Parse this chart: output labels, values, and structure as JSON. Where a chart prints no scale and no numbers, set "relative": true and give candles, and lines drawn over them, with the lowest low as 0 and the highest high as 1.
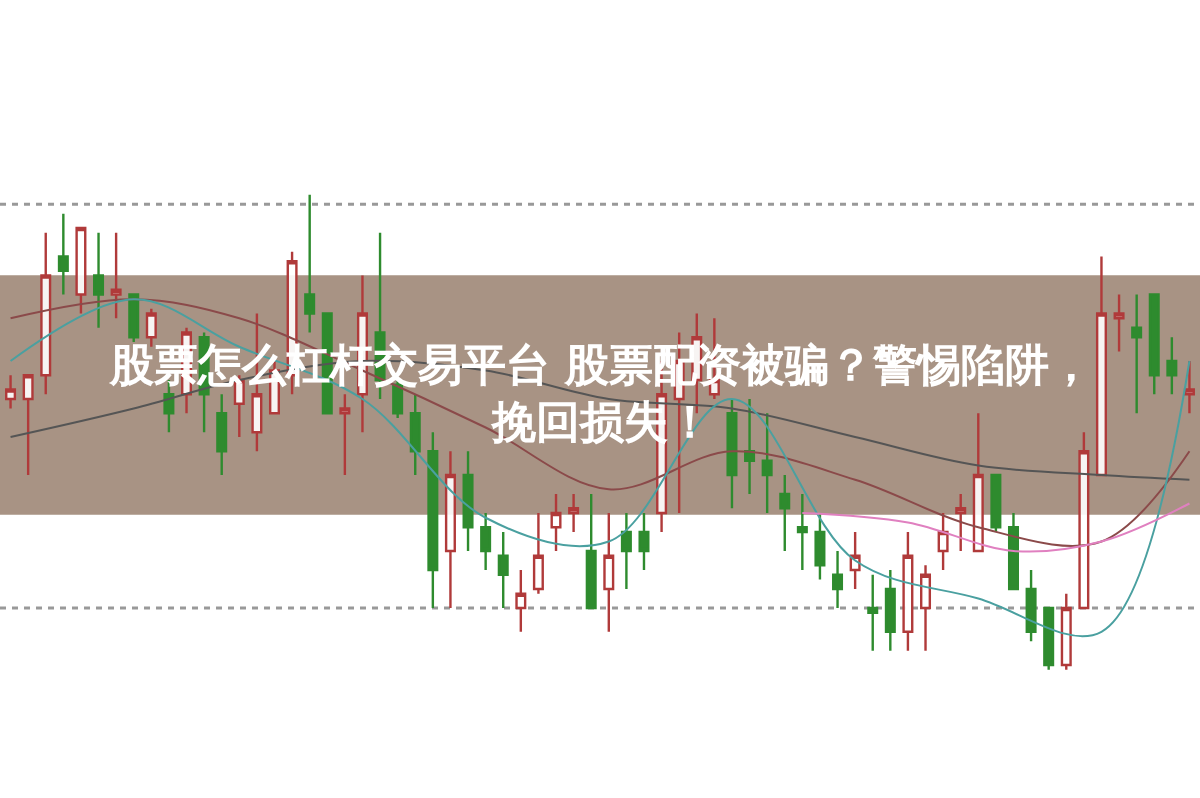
{
  "chart_data": {
    "type": "candlestick",
    "relative": true,
    "title": "股票怎么杠杆交易平台 股票配资被骗？警惕陷阱，挽回损失！",
    "categories": [
      null,
      null,
      null,
      null,
      null,
      null,
      null,
      null,
      null,
      null,
      null,
      null,
      null,
      null,
      null,
      null,
      null,
      null,
      null,
      null,
      null,
      null,
      null,
      null,
      null,
      null,
      null,
      null,
      null,
      null,
      null,
      null,
      null,
      null,
      null,
      null,
      null,
      null,
      null,
      null,
      null,
      null,
      null,
      null,
      null,
      null,
      null,
      null,
      null,
      null,
      null,
      null,
      null,
      null,
      null,
      null,
      null,
      null,
      null,
      null,
      null,
      null,
      null,
      null,
      null,
      null,
      null,
      null
    ],
    "ohlc": [
      [
        0.57,
        0.62,
        0.55,
        0.59
      ],
      [
        0.57,
        0.62,
        0.41,
        0.62
      ],
      [
        0.62,
        0.92,
        0.58,
        0.83
      ],
      [
        0.87,
        0.96,
        0.79,
        0.84
      ],
      [
        0.79,
        0.93,
        0.75,
        0.93
      ],
      [
        0.83,
        0.92,
        0.72,
        0.79
      ],
      [
        0.79,
        0.92,
        0.74,
        0.8
      ],
      [
        0.79,
        0.79,
        0.69,
        0.7
      ],
      [
        0.7,
        0.76,
        0.68,
        0.75
      ],
      [
        0.58,
        0.61,
        0.5,
        0.54
      ],
      [
        0.58,
        0.72,
        0.54,
        0.71
      ],
      [
        0.7,
        0.71,
        0.5,
        0.58
      ],
      [
        0.54,
        0.58,
        0.41,
        0.46
      ],
      [
        0.56,
        0.62,
        0.49,
        0.61
      ],
      [
        0.5,
        0.75,
        0.46,
        0.58
      ],
      [
        0.54,
        0.65,
        0.54,
        0.63
      ],
      [
        0.62,
        0.88,
        0.58,
        0.86
      ],
      [
        0.79,
        1.0,
        0.71,
        0.75
      ],
      [
        0.75,
        0.75,
        0.54,
        0.54
      ],
      [
        0.54,
        0.58,
        0.41,
        0.55
      ],
      [
        0.58,
        0.83,
        0.5,
        0.75
      ],
      [
        0.71,
        0.92,
        0.57,
        0.61
      ],
      [
        0.6,
        0.61,
        0.53,
        0.54
      ],
      [
        0.54,
        0.58,
        0.41,
        0.46
      ],
      [
        0.46,
        0.5,
        0.13,
        0.21
      ],
      [
        0.25,
        0.46,
        0.13,
        0.41
      ],
      [
        0.41,
        0.46,
        0.25,
        0.3
      ],
      [
        0.3,
        0.33,
        0.21,
        0.25
      ],
      [
        0.24,
        0.29,
        0.13,
        0.2
      ],
      [
        0.13,
        0.21,
        0.08,
        0.16
      ],
      [
        0.17,
        0.33,
        0.16,
        0.24
      ],
      [
        0.3,
        0.37,
        0.25,
        0.33
      ],
      [
        0.33,
        0.37,
        0.29,
        0.34
      ],
      [
        0.25,
        0.37,
        0.13,
        0.13
      ],
      [
        0.17,
        0.33,
        0.08,
        0.24
      ],
      [
        0.29,
        0.33,
        0.17,
        0.25
      ],
      [
        0.29,
        0.33,
        0.21,
        0.25
      ],
      [
        0.33,
        0.65,
        0.29,
        0.58
      ],
      [
        0.57,
        0.71,
        0.33,
        0.65
      ],
      [
        0.61,
        0.75,
        0.54,
        0.7
      ],
      [
        0.58,
        0.74,
        0.57,
        0.61
      ],
      [
        0.54,
        0.57,
        0.34,
        0.41
      ],
      [
        0.46,
        0.57,
        0.37,
        0.44
      ],
      [
        0.44,
        0.54,
        0.33,
        0.41
      ],
      [
        0.37,
        0.41,
        0.25,
        0.34
      ],
      [
        0.3,
        0.37,
        0.21,
        0.29
      ],
      [
        0.29,
        0.33,
        0.19,
        0.22
      ],
      [
        0.2,
        0.25,
        0.13,
        0.17
      ],
      [
        0.21,
        0.29,
        0.17,
        0.24
      ],
      [
        0.13,
        0.2,
        0.04,
        0.12
      ],
      [
        0.17,
        0.21,
        0.04,
        0.08
      ],
      [
        0.08,
        0.29,
        0.04,
        0.24
      ],
      [
        0.13,
        0.22,
        0.04,
        0.2
      ],
      [
        0.25,
        0.33,
        0.21,
        0.29
      ],
      [
        0.33,
        0.37,
        0.25,
        0.34
      ],
      [
        0.25,
        0.54,
        0.25,
        0.41
      ],
      [
        0.41,
        0.41,
        0.29,
        0.3
      ],
      [
        0.3,
        0.33,
        0.17,
        0.17
      ],
      [
        0.17,
        0.21,
        0.06,
        0.08
      ],
      [
        0.13,
        0.13,
        0,
        0.01
      ],
      [
        0.01,
        0.16,
        0,
        0.13
      ],
      [
        0.13,
        0.5,
        0.13,
        0.46
      ],
      [
        0.41,
        0.87,
        0.41,
        0.75
      ],
      [
        0.74,
        0.79,
        0.67,
        0.75
      ],
      [
        0.72,
        0.79,
        0.54,
        0.7
      ],
      [
        0.79,
        0.79,
        0.58,
        0.62
      ],
      [
        0.65,
        0.7,
        0.58,
        0.62
      ],
      [
        0.58,
        0.65,
        0.54,
        0.59
      ]
    ],
    "series": [
      {
        "type": "line",
        "color": "#555555",
        "values": [
          0.49,
          null,
          null,
          null,
          null,
          null,
          null,
          0.55,
          null,
          null,
          null,
          null,
          null,
          0.61,
          null,
          null,
          null,
          null,
          null,
          null,
          0.65,
          null,
          null,
          null,
          null,
          null,
          null,
          0.63,
          null,
          null,
          null,
          null,
          null,
          null,
          0.57,
          null,
          null,
          null,
          null,
          null,
          null,
          0.55,
          null,
          null,
          null,
          null,
          null,
          null,
          0.49,
          null,
          null,
          null,
          null,
          null,
          null,
          0.43,
          null,
          null,
          null,
          null,
          null,
          null,
          0.41,
          null,
          null,
          null,
          null,
          0.4
        ]
      },
      {
        "type": "line",
        "color": "#8b4a4a",
        "values": [
          0.74,
          null,
          null,
          null,
          null,
          null,
          null,
          0.78,
          null,
          null,
          null,
          null,
          null,
          0.74,
          null,
          null,
          null,
          null,
          null,
          null,
          0.63,
          null,
          null,
          null,
          null,
          null,
          null,
          0.51,
          null,
          null,
          null,
          null,
          null,
          null,
          0.38,
          null,
          null,
          null,
          null,
          null,
          null,
          0.46,
          null,
          null,
          null,
          null,
          null,
          null,
          0.4,
          null,
          null,
          null,
          null,
          null,
          null,
          0.3,
          null,
          null,
          null,
          null,
          null,
          null,
          0.27,
          null,
          null,
          null,
          null,
          0.46
        ]
      },
      {
        "type": "line",
        "color": "#4aa0a0",
        "values": [
          0.65,
          null,
          null,
          null,
          null,
          null,
          null,
          0.78,
          null,
          null,
          null,
          null,
          null,
          0.68,
          null,
          null,
          null,
          null,
          null,
          null,
          0.57,
          null,
          null,
          null,
          null,
          null,
          null,
          0.32,
          null,
          null,
          null,
          null,
          null,
          null,
          0.27,
          null,
          null,
          null,
          null,
          null,
          null,
          0.57,
          null,
          null,
          null,
          null,
          null,
          null,
          0.23,
          null,
          null,
          null,
          null,
          null,
          null,
          0.15,
          null,
          null,
          null,
          null,
          null,
          null,
          0.08,
          null,
          null,
          null,
          null,
          0.65
        ]
      },
      {
        "type": "line",
        "color": "#e080c0",
        "values": [
          null,
          null,
          null,
          null,
          null,
          null,
          null,
          null,
          null,
          null,
          null,
          null,
          null,
          null,
          null,
          null,
          null,
          null,
          null,
          null,
          null,
          null,
          null,
          null,
          null,
          null,
          null,
          null,
          null,
          null,
          null,
          null,
          null,
          null,
          null,
          null,
          null,
          null,
          null,
          null,
          null,
          null,
          null,
          null,
          null,
          0.33,
          null,
          null,
          null,
          null,
          null,
          0.31,
          null,
          null,
          null,
          null,
          null,
          0.25,
          null,
          null,
          null,
          null,
          0.27,
          null,
          null,
          null,
          null,
          0.35
        ]
      }
    ],
    "ref_lines": [
      {
        "axis": "y",
        "value": 0.98,
        "color": "#999999",
        "line_style": "dotted"
      },
      {
        "axis": "y",
        "value": 0.13,
        "color": "#999999",
        "line_style": "dotted"
      }
    ]
  }
}
